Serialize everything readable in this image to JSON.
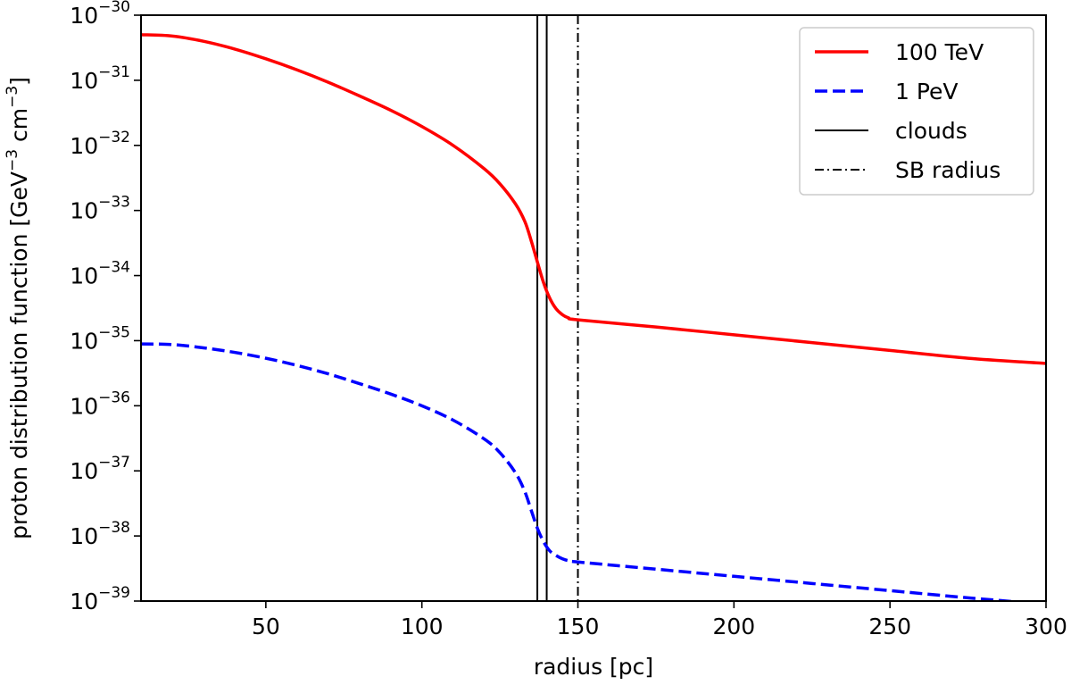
{
  "chart_data": {
    "type": "line",
    "xlabel": "radius [pc]",
    "ylabel": "proton distribution function [GeV",
    "ylabel_sup1": "−3",
    "ylabel_mid": " cm",
    "ylabel_sup2": "−3",
    "ylabel_end": "]",
    "xlim": [
      10,
      300
    ],
    "ylim_log10": [
      -39,
      -30
    ],
    "y_scale": "log",
    "xticks": [
      50,
      100,
      150,
      200,
      250,
      300
    ],
    "xtick_labels": [
      "50",
      "100",
      "150",
      "200",
      "250",
      "300"
    ],
    "yticks_log10": [
      -39,
      -38,
      -37,
      -36,
      -35,
      -34,
      -33,
      -32,
      -31,
      -30
    ],
    "ytick_base": "10",
    "ytick_exponents": [
      "−39",
      "−38",
      "−37",
      "−36",
      "−35",
      "−34",
      "−33",
      "−32",
      "−31",
      "−30"
    ],
    "legend_position": "top-right",
    "series": [
      {
        "name": "100 TeV",
        "color": "#ff0000",
        "style": "solid",
        "x": [
          10,
          20,
          30,
          40,
          50,
          60,
          70,
          80,
          90,
          100,
          110,
          120,
          125,
          130,
          133,
          135,
          137,
          139,
          141,
          143,
          145,
          147,
          150,
          175,
          200,
          225,
          250,
          275,
          300
        ],
        "log10_y": [
          -30.3,
          -30.32,
          -30.4,
          -30.52,
          -30.67,
          -30.84,
          -31.03,
          -31.24,
          -31.46,
          -31.71,
          -32.0,
          -32.36,
          -32.59,
          -32.9,
          -33.17,
          -33.46,
          -33.79,
          -34.11,
          -34.35,
          -34.51,
          -34.6,
          -34.65,
          -34.68,
          -34.79,
          -34.91,
          -35.03,
          -35.15,
          -35.27,
          -35.35
        ]
      },
      {
        "name": "1 PeV",
        "color": "#0000ff",
        "style": "dashed",
        "x": [
          10,
          20,
          30,
          40,
          50,
          60,
          70,
          80,
          90,
          100,
          110,
          120,
          125,
          130,
          133,
          135,
          137,
          139,
          141,
          143,
          145,
          147,
          150,
          175,
          200,
          225,
          250,
          275,
          300
        ],
        "log10_y": [
          -35.05,
          -35.06,
          -35.11,
          -35.18,
          -35.27,
          -35.38,
          -35.51,
          -35.66,
          -35.82,
          -36.0,
          -36.22,
          -36.51,
          -36.72,
          -37.03,
          -37.32,
          -37.6,
          -37.88,
          -38.09,
          -38.23,
          -38.3,
          -38.35,
          -38.38,
          -38.4,
          -38.51,
          -38.62,
          -38.73,
          -38.84,
          -38.95,
          -39.05
        ]
      }
    ],
    "vlines": [
      {
        "name": "clouds",
        "x": [
          137,
          140
        ],
        "style": "solid",
        "color": "#000000"
      },
      {
        "name": "SB radius",
        "x": [
          150
        ],
        "style": "dashdot",
        "color": "#000000"
      }
    ],
    "legend": [
      {
        "label": "100 TeV",
        "color": "#ff0000",
        "style": "solid",
        "width": 3.5
      },
      {
        "label": "1 PeV",
        "color": "#0000ff",
        "style": "dashed",
        "width": 3.5
      },
      {
        "label": "clouds",
        "color": "#000000",
        "style": "solid",
        "width": 2
      },
      {
        "label": "SB radius",
        "color": "#000000",
        "style": "dashdot",
        "width": 2
      }
    ]
  }
}
